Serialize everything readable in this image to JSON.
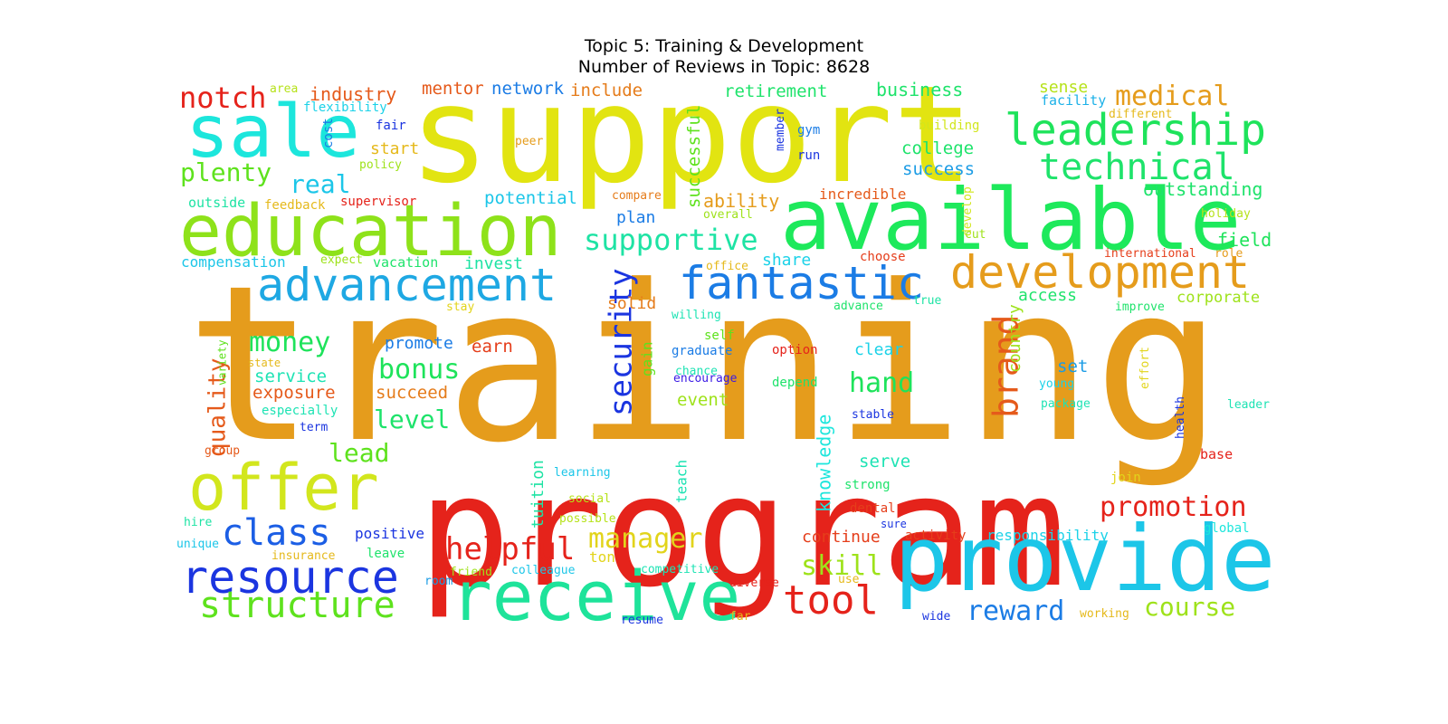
{
  "title": {
    "line1": "Topic 5: Training & Development",
    "line2": "Number of Reviews in Topic: 8628"
  },
  "words": [
    {
      "text": "training",
      "color": "#e59c1c"
    },
    {
      "text": "support",
      "color": "#e2e411"
    },
    {
      "text": "program",
      "color": "#e5231b"
    },
    {
      "text": "available",
      "color": "#1de95b"
    },
    {
      "text": "education",
      "color": "#8ee21a"
    },
    {
      "text": "provide",
      "color": "#1cc6e8"
    },
    {
      "text": "receive",
      "color": "#1ee39a"
    },
    {
      "text": "sale",
      "color": "#1ce6dc"
    },
    {
      "text": "offer",
      "color": "#d2e61d"
    },
    {
      "text": "advancement",
      "color": "#1ea8e3"
    },
    {
      "text": "development",
      "color": "#e59c1c"
    },
    {
      "text": "fantastic",
      "color": "#1b7ce5"
    },
    {
      "text": "leadership",
      "color": "#1ee35b"
    },
    {
      "text": "technical",
      "color": "#1ee36b"
    },
    {
      "text": "resource",
      "color": "#1b35e0"
    },
    {
      "text": "structure",
      "color": "#5ee21d"
    },
    {
      "text": "class",
      "color": "#1b5ee5"
    },
    {
      "text": "tool",
      "color": "#e5231b"
    },
    {
      "text": "supportive",
      "color": "#1ee3a4"
    },
    {
      "text": "security",
      "color": "#1b35e0"
    },
    {
      "text": "brand",
      "color": "#e55a1b"
    },
    {
      "text": "promotion",
      "color": "#e5231b"
    },
    {
      "text": "helpful",
      "color": "#e5231b"
    },
    {
      "text": "manager",
      "color": "#e2d41b"
    },
    {
      "text": "skill",
      "color": "#9ee21a"
    },
    {
      "text": "reward",
      "color": "#1b7ce5"
    },
    {
      "text": "course",
      "color": "#9ee21a"
    },
    {
      "text": "medical",
      "color": "#e59c1c"
    },
    {
      "text": "notch",
      "color": "#e5231b"
    },
    {
      "text": "plenty",
      "color": "#5ee21d"
    },
    {
      "text": "real",
      "color": "#1cc6e8"
    },
    {
      "text": "money",
      "color": "#1ee35b"
    },
    {
      "text": "bonus",
      "color": "#1ee35b"
    },
    {
      "text": "hand",
      "color": "#1ee35b"
    },
    {
      "text": "level",
      "color": "#1ee36b"
    },
    {
      "text": "lead",
      "color": "#5ee21d"
    },
    {
      "text": "quality",
      "color": "#e55a1b"
    },
    {
      "text": "industry",
      "color": "#e55a1b"
    },
    {
      "text": "mentor",
      "color": "#e55a1b"
    },
    {
      "text": "network",
      "color": "#1b7ce5"
    },
    {
      "text": "include",
      "color": "#e57c1b"
    },
    {
      "text": "retirement",
      "color": "#1ee36b"
    },
    {
      "text": "business",
      "color": "#1ee36b"
    },
    {
      "text": "sense",
      "color": "#b6e21a"
    },
    {
      "text": "facility",
      "color": "#1cb1e8"
    },
    {
      "text": "outstanding",
      "color": "#1ee36b"
    },
    {
      "text": "successful",
      "color": "#5ee21d"
    },
    {
      "text": "college",
      "color": "#1ee36b"
    },
    {
      "text": "success",
      "color": "#1b9ce5"
    },
    {
      "text": "potential",
      "color": "#1cc6e8"
    },
    {
      "text": "ability",
      "color": "#e59c1c"
    },
    {
      "text": "incredible",
      "color": "#e55a1b"
    },
    {
      "text": "plan",
      "color": "#1b7ce5"
    },
    {
      "text": "field",
      "color": "#1ee35b"
    },
    {
      "text": "access",
      "color": "#1ee36b"
    },
    {
      "text": "corporate",
      "color": "#9ee21a"
    },
    {
      "text": "country",
      "color": "#9ee21a"
    },
    {
      "text": "invest",
      "color": "#1ee3a4"
    },
    {
      "text": "solid",
      "color": "#e57c1b"
    },
    {
      "text": "share",
      "color": "#1cd2e8"
    },
    {
      "text": "earn",
      "color": "#e53e1b"
    },
    {
      "text": "promote",
      "color": "#1b7ce5"
    },
    {
      "text": "service",
      "color": "#1ee3b4"
    },
    {
      "text": "exposure",
      "color": "#e55a1b"
    },
    {
      "text": "succeed",
      "color": "#e57c1b"
    },
    {
      "text": "clear",
      "color": "#1cd2e8"
    },
    {
      "text": "set",
      "color": "#1b9ce5"
    },
    {
      "text": "event",
      "color": "#9ee21a"
    },
    {
      "text": "gain",
      "color": "#5ee21d"
    },
    {
      "text": "knowledge",
      "color": "#1ce6dc"
    },
    {
      "text": "serve",
      "color": "#1ee3b4"
    },
    {
      "text": "continue",
      "color": "#e53e1b"
    },
    {
      "text": "responsibility",
      "color": "#1cd2e8"
    },
    {
      "text": "tuition",
      "color": "#1ee3a4"
    },
    {
      "text": "teach",
      "color": "#1ee3b4"
    },
    {
      "text": "positive",
      "color": "#1b35e0"
    },
    {
      "text": "compensation",
      "color": "#1cc6e8"
    },
    {
      "text": "outside",
      "color": "#1ee3a4"
    },
    {
      "text": "vacation",
      "color": "#1ee36b"
    },
    {
      "text": "especially",
      "color": "#1ee3b4"
    },
    {
      "text": "flexibility",
      "color": "#1cd2e8"
    },
    {
      "text": "area",
      "color": "#b6e21a"
    },
    {
      "text": "cost",
      "color": "#1b7ce5"
    },
    {
      "text": "fair",
      "color": "#1b35e0"
    },
    {
      "text": "start",
      "color": "#e5b91b"
    },
    {
      "text": "policy",
      "color": "#9ee21a"
    },
    {
      "text": "feedback",
      "color": "#e5b91b"
    },
    {
      "text": "supervisor",
      "color": "#e5231b"
    },
    {
      "text": "peer",
      "color": "#e59c1c"
    },
    {
      "text": "member",
      "color": "#1b35e0"
    },
    {
      "text": "gym",
      "color": "#1b7ce5"
    },
    {
      "text": "run",
      "color": "#1b35e0"
    },
    {
      "text": "compare",
      "color": "#e57c1b"
    },
    {
      "text": "overall",
      "color": "#9ee21a"
    },
    {
      "text": "develop",
      "color": "#d2e61d"
    },
    {
      "text": "cut",
      "color": "#9ee21a"
    },
    {
      "text": "building",
      "color": "#d2e61d"
    },
    {
      "text": "different",
      "color": "#e5b91b"
    },
    {
      "text": "holiday",
      "color": "#b6e21a"
    },
    {
      "text": "international",
      "color": "#e53e1b"
    },
    {
      "text": "role",
      "color": "#e59c1c"
    },
    {
      "text": "choose",
      "color": "#e53e1b"
    },
    {
      "text": "office",
      "color": "#e5b91b"
    },
    {
      "text": "expect",
      "color": "#9ee21a"
    },
    {
      "text": "stay",
      "color": "#e2d41b"
    },
    {
      "text": "willing",
      "color": "#1ee3b4"
    },
    {
      "text": "advance",
      "color": "#1ee36b"
    },
    {
      "text": "true",
      "color": "#1ee3a4"
    },
    {
      "text": "improve",
      "color": "#1ee36b"
    },
    {
      "text": "self",
      "color": "#5ee21d"
    },
    {
      "text": "graduate",
      "color": "#1b7ce5"
    },
    {
      "text": "option",
      "color": "#e5231b"
    },
    {
      "text": "chance",
      "color": "#1ee3b4"
    },
    {
      "text": "encourage",
      "color": "#3b1be5"
    },
    {
      "text": "depend",
      "color": "#1ee36b"
    },
    {
      "text": "young",
      "color": "#1cd2e8"
    },
    {
      "text": "package",
      "color": "#1ee3b4"
    },
    {
      "text": "effort",
      "color": "#e2d41b"
    },
    {
      "text": "leader",
      "color": "#1ee3b4"
    },
    {
      "text": "state",
      "color": "#e5b91b"
    },
    {
      "text": "variety",
      "color": "#5ee21d"
    },
    {
      "text": "group",
      "color": "#e55a1b"
    },
    {
      "text": "term",
      "color": "#1b35e0"
    },
    {
      "text": "stable",
      "color": "#1b35e0"
    },
    {
      "text": "health",
      "color": "#1b35e0"
    },
    {
      "text": "base",
      "color": "#e5231b"
    },
    {
      "text": "join",
      "color": "#e2d41b"
    },
    {
      "text": "strong",
      "color": "#1ee36b"
    },
    {
      "text": "dental",
      "color": "#e53e1b"
    },
    {
      "text": "sure",
      "color": "#1b35e0"
    },
    {
      "text": "activity",
      "color": "#e53e1b"
    },
    {
      "text": "global",
      "color": "#1ce6dc"
    },
    {
      "text": "learning",
      "color": "#1cc6e8"
    },
    {
      "text": "social",
      "color": "#b6e21a"
    },
    {
      "text": "possible",
      "color": "#b6e21a"
    },
    {
      "text": "hire",
      "color": "#1ee3a4"
    },
    {
      "text": "unique",
      "color": "#1cc6e8"
    },
    {
      "text": "insurance",
      "color": "#e5b91b"
    },
    {
      "text": "leave",
      "color": "#1ee36b"
    },
    {
      "text": "ton",
      "color": "#e2d41b"
    },
    {
      "text": "friend",
      "color": "#9ee21a"
    },
    {
      "text": "colleague",
      "color": "#1cc6e8"
    },
    {
      "text": "competitive",
      "color": "#1ee3b4"
    },
    {
      "text": "room",
      "color": "#1b9ce5"
    },
    {
      "text": "diverse",
      "color": "#e5231b"
    },
    {
      "text": "use",
      "color": "#e5b91b"
    },
    {
      "text": "resume",
      "color": "#1b35e0"
    },
    {
      "text": "far",
      "color": "#e5b91b"
    },
    {
      "text": "wide",
      "color": "#1b35e0"
    },
    {
      "text": "working",
      "color": "#e5b91b"
    }
  ]
}
